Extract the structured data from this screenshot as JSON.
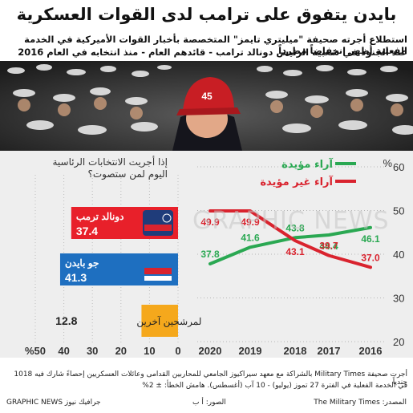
{
  "title": "بايدن يتفوق على ترامب لدى القوات العسكرية",
  "subtitle_line1": "استطلاع أجرته صحيفة \"ميليتري تايمز\" المتخصصة بأخبار القوات الأميركية في الخدمة الفعلية أظهر انخفاضاً مطرداً",
  "subtitle_line2": "عند الجنود في شعبية الرئيس دونالد ترامب - قائدهم العام - منذ انتخابه في العام 2016",
  "photo_badge": "45",
  "watermark": "GRAPHIC NEWS",
  "colors": {
    "approve": "#2aa852",
    "disapprove": "#d9232e",
    "trump": "#e8202a",
    "biden": "#1e6fc0",
    "other": "#f5a81c",
    "dark": "#111111"
  },
  "chart_data": [
    {
      "type": "line",
      "x": [
        2016,
        2017,
        2018,
        2019,
        2020
      ],
      "series": [
        {
          "name": "آراء مؤيدة",
          "values": [
            46.1,
            44.4,
            43.8,
            41.6,
            37.8
          ]
        },
        {
          "name": "آراء غير مؤيدة",
          "values": [
            37.0,
            39.7,
            43.1,
            49.9,
            49.9
          ]
        }
      ],
      "ylim": [
        20,
        60
      ],
      "yticks": [
        20,
        30,
        40,
        50,
        60
      ],
      "y_unit": "%",
      "grid": true
    },
    {
      "type": "bar",
      "title_line1": "إذا أجريت الانتخابات الرئاسية",
      "title_line2": "اليوم لمن ستصوت؟",
      "categories": [
        "دونالد ترمب",
        "جو بايدن",
        "لمرشحين آخرين"
      ],
      "values": [
        37.4,
        41.3,
        12.8
      ],
      "value_labels": [
        "37.4",
        "41.3",
        "12.8"
      ],
      "xticks": [
        "%50",
        "40",
        "30",
        "20",
        "10",
        "0"
      ],
      "xlim": [
        0,
        50
      ]
    }
  ],
  "footer_line1": "أجرت صحيفة Military Times بالشراكة مع معهد سيراكيوز الجامعي للمحاربين القدامى وعائلات العسكريين إحصاءً شارك فيه 1018 جندياً",
  "footer_line2": "في الخدمة الفعلية في الفترة 27 تموز (يوليو) - 10 آب (أغسطس). هامش الخطأ: ± 2%",
  "source": "المصدر: The Military Times",
  "photo_credit": "الصور: أ ب",
  "brand": "جرافيك نيوز GRAPHIC NEWS"
}
